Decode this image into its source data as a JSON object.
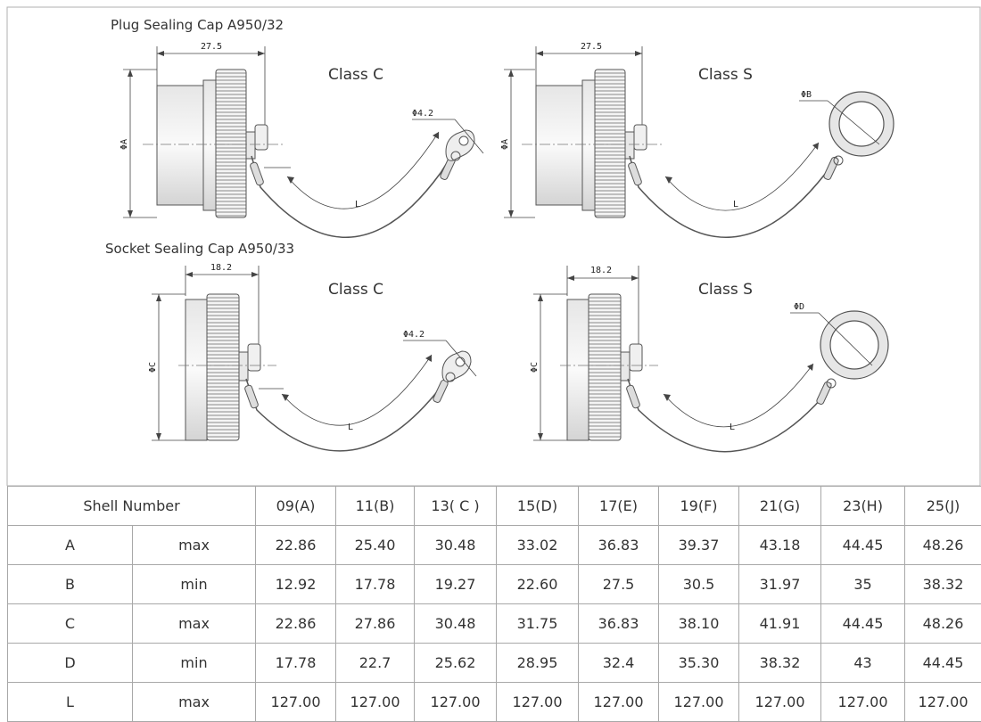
{
  "drawings": {
    "plug_title": "Plug Sealing Cap A950/32",
    "socket_title": "Socket Sealing Cap A950/33",
    "class_c": "Class C",
    "class_s": "Class S",
    "plug_length_dim": "27.5",
    "socket_length_dim": "18.2",
    "hole_dim": "Φ4.2",
    "dia_a": "ΦA",
    "dia_b": "ΦB",
    "dia_c": "ΦC",
    "dia_d": "ΦD",
    "lanyard_length": "L"
  },
  "table": {
    "header_label": "Shell Number",
    "shells": [
      "09(A)",
      "11(B)",
      "13( C )",
      "15(D)",
      "17(E)",
      "19(F)",
      "21(G)",
      "23(H)",
      "25(J)"
    ],
    "rows": [
      {
        "param": "A",
        "limit": "max",
        "values": [
          "22.86",
          "25.40",
          "30.48",
          "33.02",
          "36.83",
          "39.37",
          "43.18",
          "44.45",
          "48.26"
        ]
      },
      {
        "param": "B",
        "limit": "min",
        "values": [
          "12.92",
          "17.78",
          "19.27",
          "22.60",
          "27.5",
          "30.5",
          "31.97",
          "35",
          "38.32"
        ]
      },
      {
        "param": "C",
        "limit": "max",
        "values": [
          "22.86",
          "27.86",
          "30.48",
          "31.75",
          "36.83",
          "38.10",
          "41.91",
          "44.45",
          "48.26"
        ]
      },
      {
        "param": "D",
        "limit": "min",
        "values": [
          "17.78",
          "22.7",
          "25.62",
          "28.95",
          "32.4",
          "35.30",
          "38.32",
          "43",
          "44.45"
        ]
      },
      {
        "param": "L",
        "limit": "max",
        "values": [
          "127.00",
          "127.00",
          "127.00",
          "127.00",
          "127.00",
          "127.00",
          "127.00",
          "127.00",
          "127.00"
        ]
      }
    ]
  }
}
